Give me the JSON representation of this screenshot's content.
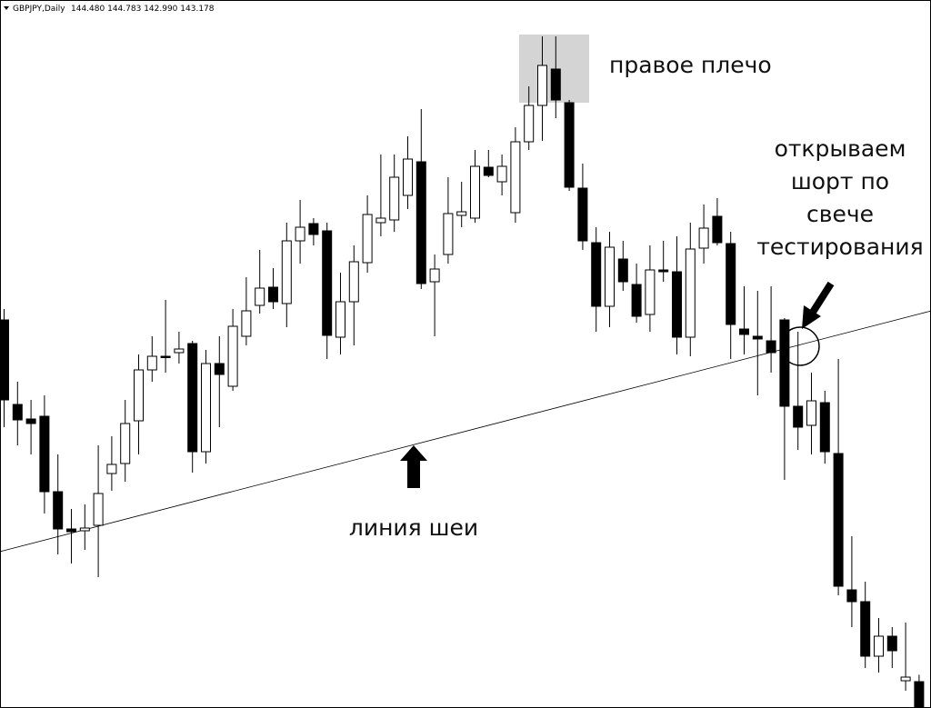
{
  "chart_data": {
    "type": "candlestick",
    "header": {
      "symbol": "GBPJPY,Daily",
      "ohlc_labels": [
        "144.480",
        "144.783",
        "142.990",
        "143.178"
      ]
    },
    "annotations": {
      "right_shoulder": "правое плечо",
      "entry": [
        "открываем",
        "шорт по",
        "свече",
        "тестирования"
      ],
      "neckline": "линия шеи"
    },
    "ylim": [
      143.32,
      174.48
    ],
    "open": [
      160.4,
      156.68,
      156.04,
      156.16,
      152.84,
      151.2,
      151.12,
      151.36,
      153.64,
      154.08,
      155.96,
      158.2,
      158.8,
      158.96,
      159.36,
      154.6,
      158.48,
      157.48,
      159.68,
      161.04,
      161.84,
      161.12,
      163.88,
      164.64,
      164.32,
      159.64,
      161.2,
      162.92,
      164.68,
      164.8,
      165.88,
      167.36,
      162.08,
      163.28,
      165.0,
      164.88,
      167.12,
      166.48,
      165.12,
      168.24,
      169.84,
      171.44,
      169.96,
      166.2,
      163.8,
      161.0,
      163.08,
      161.96,
      160.64,
      162.6,
      162.52,
      159.64,
      163.56,
      164.96,
      163.76,
      160.0,
      159.68,
      159.48,
      160.4,
      156.6,
      155.76,
      156.76,
      154.52,
      148.52,
      148.0,
      145.6,
      146.48,
      144.52,
      144.48
    ],
    "high": [
      160.88,
      157.68,
      156.88,
      157.08,
      154.48,
      152.08,
      152.28,
      154.88,
      155.28,
      156.88,
      158.88,
      159.68,
      161.28,
      159.88,
      159.48,
      159.08,
      159.68,
      160.88,
      162.28,
      163.48,
      162.68,
      164.68,
      165.68,
      164.88,
      164.68,
      162.48,
      163.68,
      165.88,
      167.68,
      167.68,
      168.48,
      169.68,
      163.28,
      166.68,
      166.48,
      167.88,
      167.88,
      167.68,
      168.88,
      170.68,
      172.88,
      172.88,
      170.08,
      167.28,
      164.48,
      164.28,
      163.88,
      162.88,
      163.68,
      163.88,
      164.08,
      164.68,
      165.48,
      165.76,
      164.28,
      161.88,
      161.68,
      161.88,
      160.48,
      159.88,
      158.08,
      157.28,
      158.68,
      150.88,
      148.88,
      147.28,
      146.88,
      147.08,
      144.783
    ],
    "low": [
      155.68,
      154.88,
      154.48,
      151.88,
      150.08,
      149.68,
      150.28,
      149.08,
      152.88,
      153.28,
      154.48,
      157.68,
      158.08,
      158.48,
      153.68,
      154.08,
      155.68,
      157.28,
      159.28,
      160.68,
      160.88,
      160.08,
      162.88,
      163.68,
      158.68,
      158.88,
      159.28,
      162.48,
      164.08,
      164.28,
      165.28,
      161.76,
      159.68,
      162.88,
      164.48,
      164.68,
      166.68,
      165.88,
      164.68,
      167.88,
      168.28,
      169.28,
      166.08,
      163.48,
      159.88,
      160.08,
      161.68,
      160.28,
      159.88,
      162.08,
      158.88,
      158.8,
      162.88,
      163.68,
      158.68,
      158.88,
      157.08,
      158.08,
      153.36,
      154.68,
      154.48,
      154.08,
      148.28,
      146.88,
      145.08,
      144.88,
      145.08,
      144.08,
      142.99
    ],
    "close": [
      156.88,
      156.0,
      155.84,
      152.84,
      151.2,
      151.08,
      151.24,
      152.76,
      154.04,
      155.84,
      158.2,
      158.8,
      158.76,
      159.12,
      154.6,
      158.48,
      158.0,
      160.12,
      160.8,
      161.8,
      161.2,
      163.88,
      164.48,
      164.16,
      159.72,
      161.2,
      162.96,
      165.04,
      164.88,
      166.68,
      167.48,
      162.0,
      162.64,
      165.08,
      165.16,
      167.16,
      166.76,
      167.16,
      168.24,
      169.84,
      171.6,
      170.08,
      166.24,
      163.88,
      161.0,
      163.6,
      162.08,
      160.56,
      162.6,
      162.52,
      159.64,
      163.52,
      164.44,
      163.8,
      160.2,
      159.76,
      159.56,
      158.96,
      156.6,
      155.68,
      156.84,
      154.6,
      148.68,
      148.0,
      145.6,
      146.48,
      145.84,
      144.68,
      143.178
    ],
    "neckline": {
      "x": [
        0,
        68
      ],
      "values": [
        150.25,
        160.66
      ]
    }
  }
}
